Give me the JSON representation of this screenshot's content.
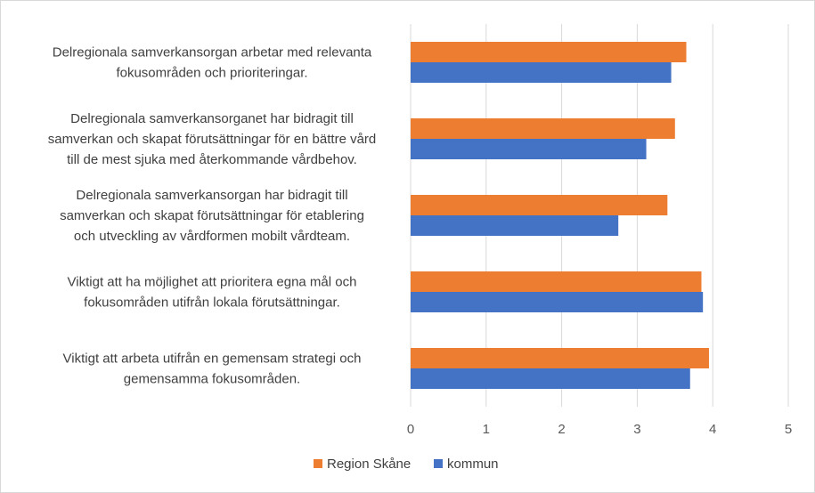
{
  "chart_data": {
    "type": "bar",
    "orientation": "horizontal",
    "title": "",
    "xlabel": "",
    "ylabel": "",
    "xlim": [
      0,
      5
    ],
    "x_ticks": [
      "0",
      "1",
      "2",
      "3",
      "4",
      "5"
    ],
    "grid": true,
    "legend_position": "bottom",
    "categories": [
      [
        "Delregionala samverkansorgan arbetar med relevanta",
        "fokusområden och prioriteringar."
      ],
      [
        "Delregionala samverkansorganet har bidragit till",
        "samverkan och skapat förutsättningar för en bättre vård",
        "till de mest sjuka med återkommande vårdbehov."
      ],
      [
        "Delregionala samverkansorgan har bidragit till",
        "samverkan och skapat förutsättningar för etablering",
        "och utveckling av vårdformen mobilt vårdteam."
      ],
      [
        "Viktigt att ha möjlighet att prioritera egna mål och",
        "fokusområden utifrån lokala förutsättningar."
      ],
      [
        "Viktigt att arbeta utifrån en gemensam strategi och",
        "gemensamma fokusområden."
      ]
    ],
    "series": [
      {
        "name": "Region Skåne",
        "color": "#ed7d31",
        "values": [
          3.65,
          3.5,
          3.4,
          3.85,
          3.95
        ]
      },
      {
        "name": "kommun",
        "color": "#4472c4",
        "values": [
          3.45,
          3.12,
          2.75,
          3.87,
          3.7
        ]
      }
    ]
  },
  "colors": {
    "gridline": "#d9d9d9",
    "axis_text": "#595959",
    "label_text": "#404040",
    "frame": "#d9d9d9"
  }
}
